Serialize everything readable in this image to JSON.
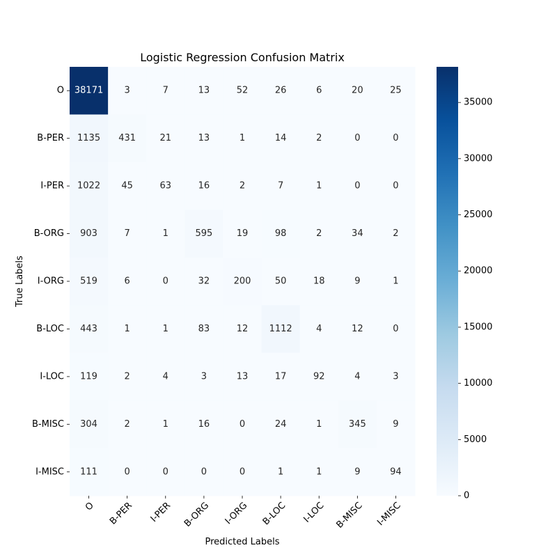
{
  "chart_data": {
    "type": "heatmap",
    "title": "Logistic Regression Confusion Matrix",
    "xlabel": "Predicted Labels",
    "ylabel": "True Labels",
    "x_categories": [
      "O",
      "B-PER",
      "I-PER",
      "B-ORG",
      "I-ORG",
      "B-LOC",
      "I-LOC",
      "B-MISC",
      "I-MISC"
    ],
    "y_categories": [
      "O",
      "B-PER",
      "I-PER",
      "B-ORG",
      "I-ORG",
      "B-LOC",
      "I-LOC",
      "B-MISC",
      "I-MISC"
    ],
    "values": [
      [
        38171,
        3,
        7,
        13,
        52,
        26,
        6,
        20,
        25
      ],
      [
        1135,
        431,
        21,
        13,
        1,
        14,
        2,
        0,
        0
      ],
      [
        1022,
        45,
        63,
        16,
        2,
        7,
        1,
        0,
        0
      ],
      [
        903,
        7,
        1,
        595,
        19,
        98,
        2,
        34,
        2
      ],
      [
        519,
        6,
        0,
        32,
        200,
        50,
        18,
        9,
        1
      ],
      [
        443,
        1,
        1,
        83,
        12,
        1112,
        4,
        12,
        0
      ],
      [
        119,
        2,
        4,
        3,
        13,
        17,
        92,
        4,
        3
      ],
      [
        304,
        2,
        1,
        16,
        0,
        24,
        1,
        345,
        9
      ],
      [
        111,
        0,
        0,
        0,
        0,
        1,
        1,
        9,
        94
      ]
    ],
    "colormap": "Blues",
    "colors": [
      "#f7fbff",
      "#deebf7",
      "#c6dbef",
      "#9ecae1",
      "#6baed6",
      "#4292c6",
      "#2171b5",
      "#08519c",
      "#08306b"
    ],
    "value_range": [
      0,
      38171
    ],
    "colorbar_ticks": [
      "0",
      "5000",
      "10000",
      "15000",
      "20000",
      "25000",
      "30000",
      "35000"
    ],
    "annotations": true,
    "grid": false
  }
}
